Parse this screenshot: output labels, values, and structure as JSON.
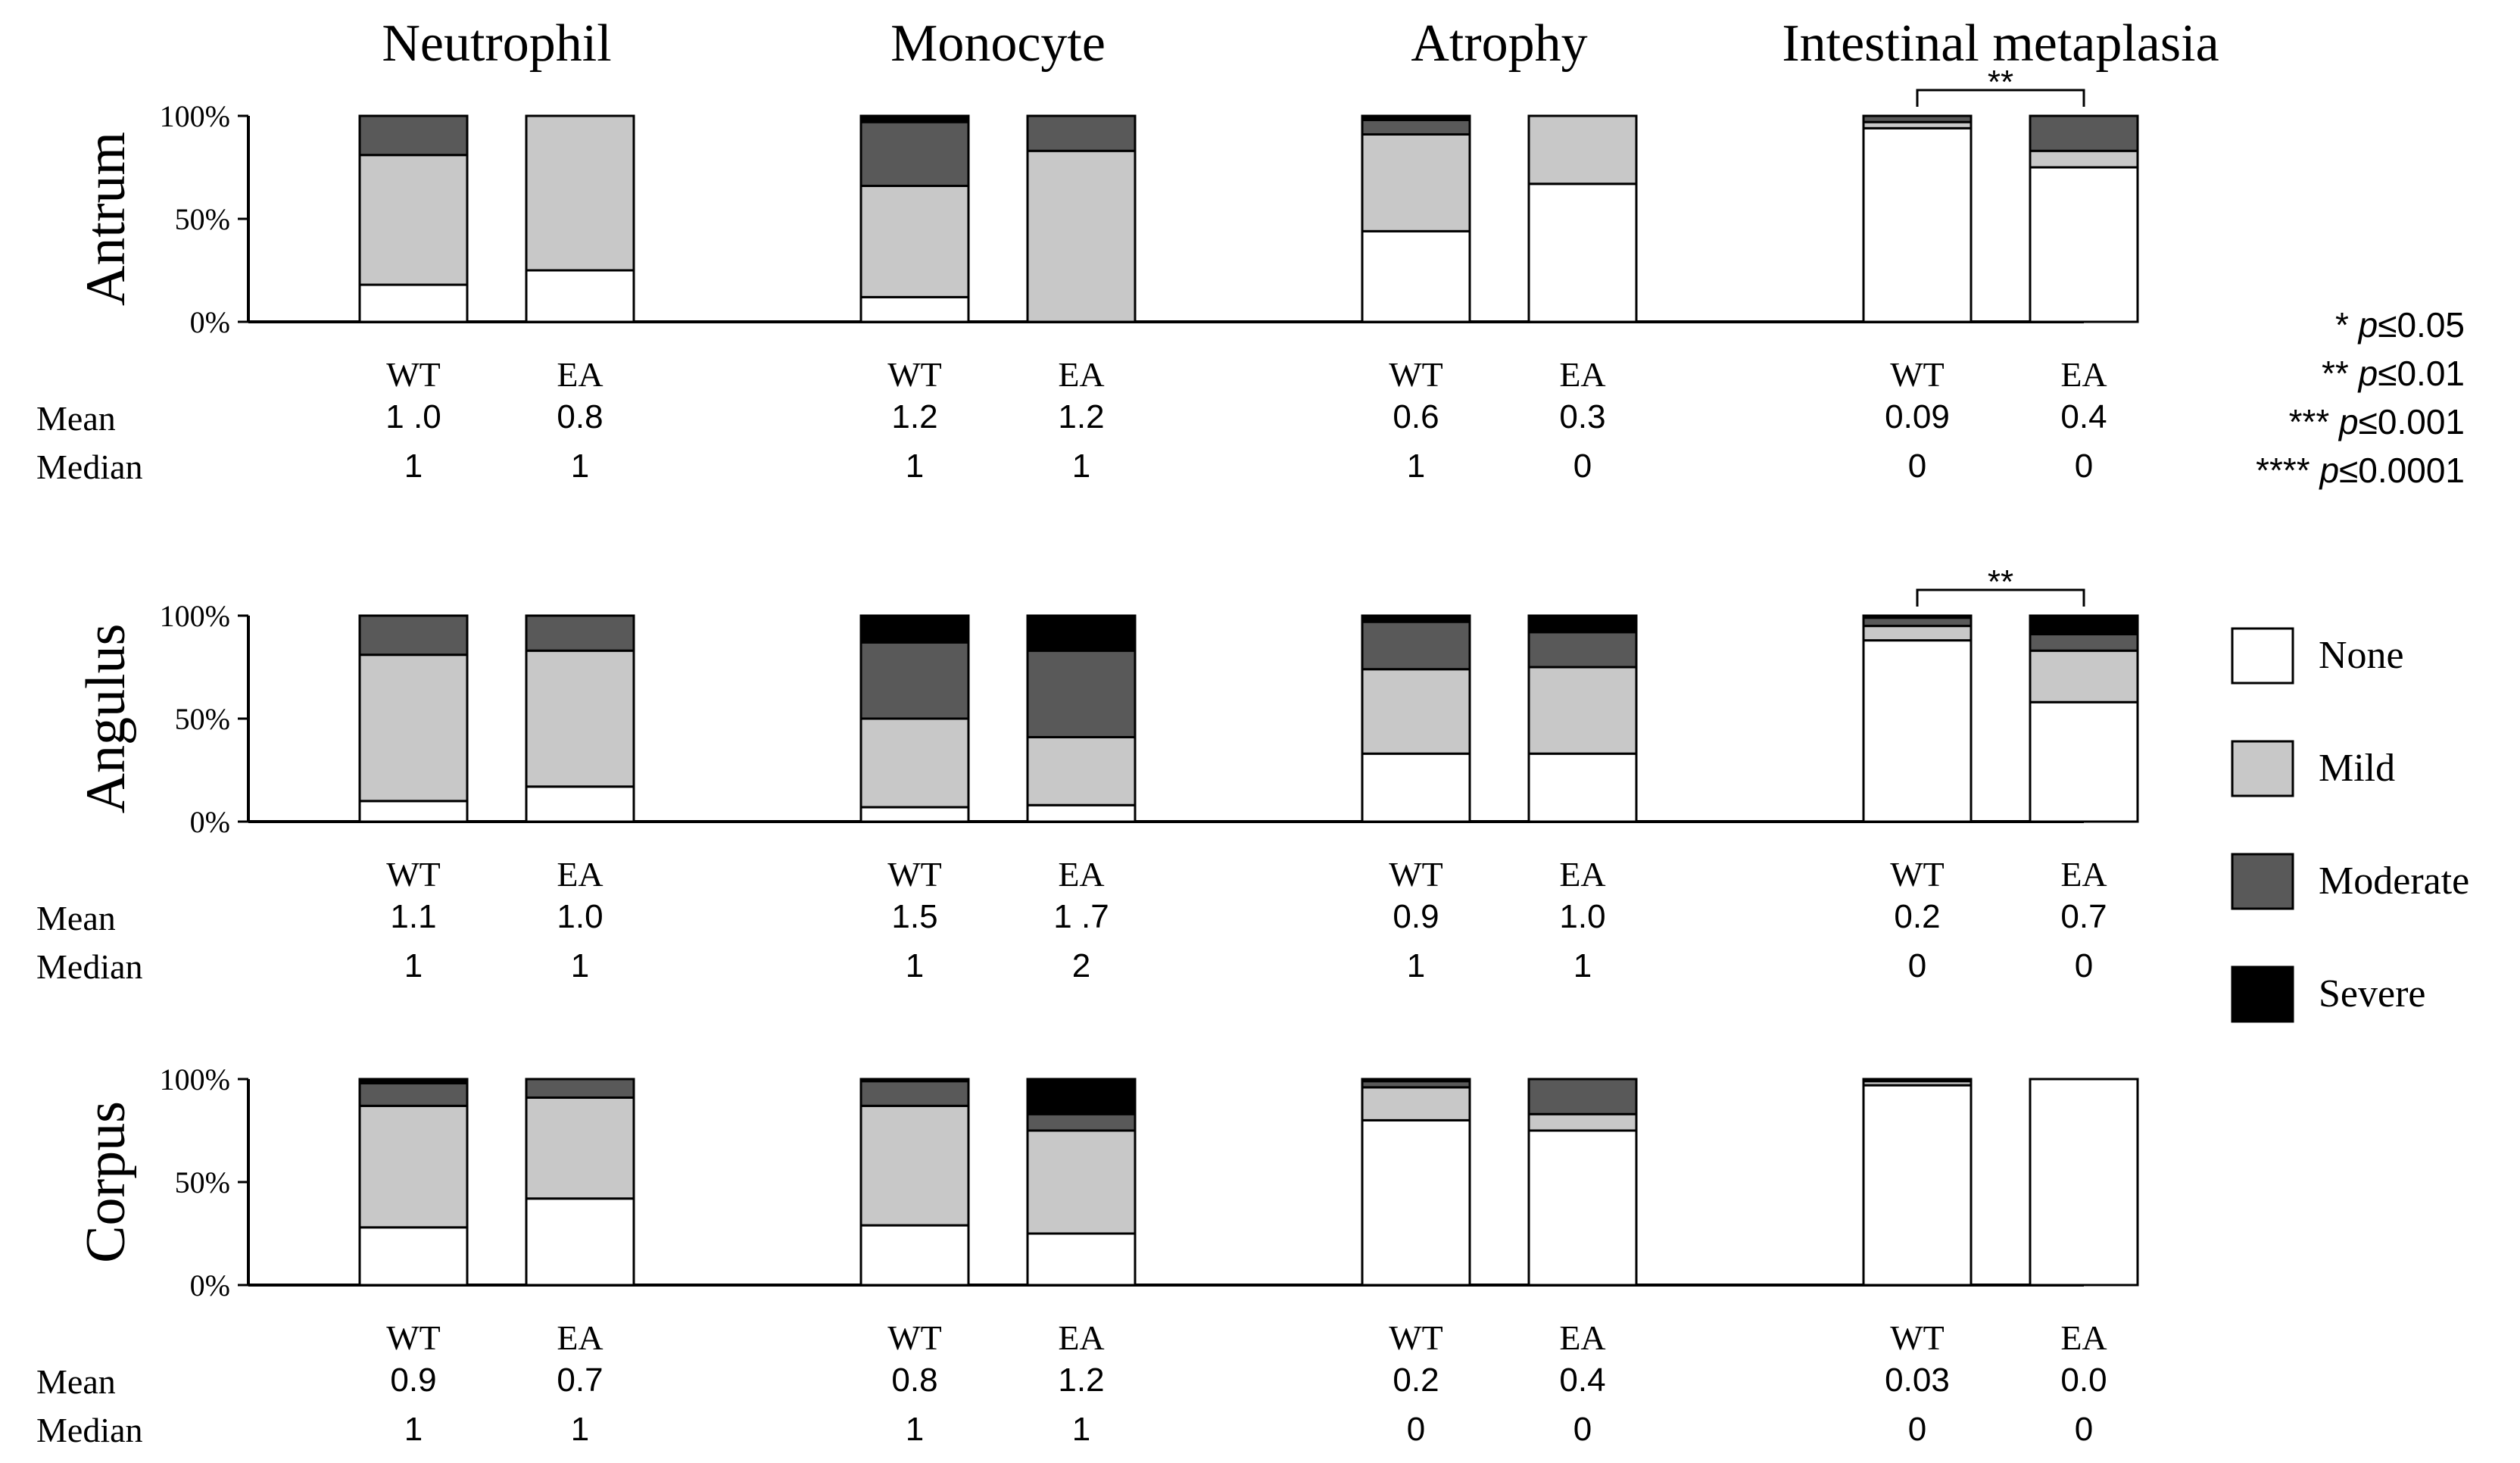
{
  "chart_data": {
    "type": "bar",
    "subtype": "stacked-100-percent",
    "columns": [
      "Neutrophil",
      "Monocyte",
      "Atrophy",
      "Intestinal metaplasia"
    ],
    "rows": [
      "Antrum",
      "Angulus",
      "Corpus"
    ],
    "groups": [
      "WT",
      "EA"
    ],
    "severity_levels": [
      "None",
      "Mild",
      "Moderate",
      "Severe"
    ],
    "colors": {
      "None": "#ffffff",
      "Mild": "#c8c8c8",
      "Moderate": "#595959",
      "Severe": "#000000",
      "axis": "#000000"
    },
    "y_ticks": [
      "0%",
      "50%",
      "100%"
    ],
    "ylim": [
      0,
      100
    ],
    "stat_labels": {
      "mean": "Mean",
      "median": "Median"
    },
    "significance_legend": [
      {
        "stars": "*",
        "p": "p",
        "rest": "≤0.05"
      },
      {
        "stars": "**",
        "p": "p",
        "rest": "≤0.01"
      },
      {
        "stars": "***",
        "p": "p",
        "rest": "≤0.001"
      },
      {
        "stars": "****",
        "p": "p",
        "rest": "≤0.0001"
      }
    ],
    "panels": [
      {
        "row": "Antrum",
        "column": "Neutrophil",
        "bars": [
          {
            "group": "WT",
            "none": 18,
            "mild": 63,
            "moderate": 19,
            "severe": 0,
            "mean": "1 .0",
            "median": "1"
          },
          {
            "group": "EA",
            "none": 25,
            "mild": 75,
            "moderate": 0,
            "severe": 0,
            "mean": "0.8",
            "median": "1"
          }
        ]
      },
      {
        "row": "Antrum",
        "column": "Monocyte",
        "bars": [
          {
            "group": "WT",
            "none": 12,
            "mild": 54,
            "moderate": 31,
            "severe": 3,
            "mean": "1.2",
            "median": "1"
          },
          {
            "group": "EA",
            "none": 0,
            "mild": 83,
            "moderate": 17,
            "severe": 0,
            "mean": "1.2",
            "median": "1"
          }
        ]
      },
      {
        "row": "Antrum",
        "column": "Atrophy",
        "bars": [
          {
            "group": "WT",
            "none": 44,
            "mild": 47,
            "moderate": 7,
            "severe": 2,
            "mean": "0.6",
            "median": "1"
          },
          {
            "group": "EA",
            "none": 67,
            "mild": 33,
            "moderate": 0,
            "severe": 0,
            "mean": "0.3",
            "median": "0"
          }
        ]
      },
      {
        "row": "Antrum",
        "column": "Intestinal metaplasia",
        "significance": "**",
        "bars": [
          {
            "group": "WT",
            "none": 94,
            "mild": 3,
            "moderate": 3,
            "severe": 0,
            "mean": "0.09",
            "median": "0"
          },
          {
            "group": "EA",
            "none": 75,
            "mild": 8,
            "moderate": 17,
            "severe": 0,
            "mean": "0.4",
            "median": "0"
          }
        ]
      },
      {
        "row": "Angulus",
        "column": "Neutrophil",
        "bars": [
          {
            "group": "WT",
            "none": 10,
            "mild": 71,
            "moderate": 19,
            "severe": 0,
            "mean": "1.1",
            "median": "1"
          },
          {
            "group": "EA",
            "none": 17,
            "mild": 66,
            "moderate": 17,
            "severe": 0,
            "mean": "1.0",
            "median": "1"
          }
        ]
      },
      {
        "row": "Angulus",
        "column": "Monocyte",
        "bars": [
          {
            "group": "WT",
            "none": 7,
            "mild": 43,
            "moderate": 37,
            "severe": 13,
            "mean": "1.5",
            "median": "1"
          },
          {
            "group": "EA",
            "none": 8,
            "mild": 33,
            "moderate": 42,
            "severe": 17,
            "mean": "1 .7",
            "median": "2"
          }
        ]
      },
      {
        "row": "Angulus",
        "column": "Atrophy",
        "bars": [
          {
            "group": "WT",
            "none": 33,
            "mild": 41,
            "moderate": 23,
            "severe": 3,
            "mean": "0.9",
            "median": "1"
          },
          {
            "group": "EA",
            "none": 33,
            "mild": 42,
            "moderate": 17,
            "severe": 8,
            "mean": "1.0",
            "median": "1"
          }
        ]
      },
      {
        "row": "Angulus",
        "column": "Intestinal metaplasia",
        "significance": "**",
        "bars": [
          {
            "group": "WT",
            "none": 88,
            "mild": 7,
            "moderate": 4,
            "severe": 1,
            "mean": "0.2",
            "median": "0"
          },
          {
            "group": "EA",
            "none": 58,
            "mild": 25,
            "moderate": 8,
            "severe": 9,
            "mean": "0.7",
            "median": "0"
          }
        ]
      },
      {
        "row": "Corpus",
        "column": "Neutrophil",
        "bars": [
          {
            "group": "WT",
            "none": 28,
            "mild": 59,
            "moderate": 11,
            "severe": 2,
            "mean": "0.9",
            "median": "1"
          },
          {
            "group": "EA",
            "none": 42,
            "mild": 49,
            "moderate": 9,
            "severe": 0,
            "mean": "0.7",
            "median": "1"
          }
        ]
      },
      {
        "row": "Corpus",
        "column": "Monocyte",
        "bars": [
          {
            "group": "WT",
            "none": 29,
            "mild": 58,
            "moderate": 12,
            "severe": 1,
            "mean": "0.8",
            "median": "1"
          },
          {
            "group": "EA",
            "none": 25,
            "mild": 50,
            "moderate": 8,
            "severe": 17,
            "mean": "1.2",
            "median": "1"
          }
        ]
      },
      {
        "row": "Corpus",
        "column": "Atrophy",
        "bars": [
          {
            "group": "WT",
            "none": 80,
            "mild": 16,
            "moderate": 3,
            "severe": 1,
            "mean": "0.2",
            "median": "0"
          },
          {
            "group": "EA",
            "none": 75,
            "mild": 8,
            "moderate": 17,
            "severe": 0,
            "mean": "0.4",
            "median": "0"
          }
        ]
      },
      {
        "row": "Corpus",
        "column": "Intestinal metaplasia",
        "bars": [
          {
            "group": "WT",
            "none": 97,
            "mild": 2,
            "moderate": 1,
            "severe": 0,
            "mean": "0.03",
            "median": "0"
          },
          {
            "group": "EA",
            "none": 100,
            "mild": 0,
            "moderate": 0,
            "severe": 0,
            "mean": "0.0",
            "median": "0"
          }
        ]
      }
    ]
  }
}
